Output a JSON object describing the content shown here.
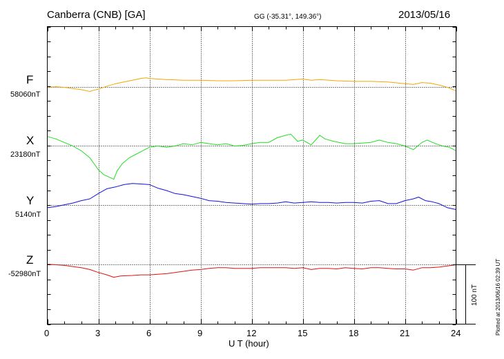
{
  "chart_data": {
    "type": "line",
    "title": "Canberra (CNB)  [GA]",
    "coordinates": "GG (-35.31°, 149.36°)",
    "date": "2013/05/16",
    "xlabel": "U T (hour)",
    "xlim": [
      0,
      24
    ],
    "x_ticks": [
      "0",
      "3",
      "6",
      "9",
      "12",
      "15",
      "18",
      "21",
      "24"
    ],
    "scale_bar": "100 nT",
    "plotted_note": "Plotted at 2013/06/16 02:39 UT",
    "y_units": "nT",
    "series": [
      {
        "name": "F",
        "baseline_label": "58060nT",
        "baseline": 58060,
        "color": "#f0a800",
        "x": [
          0,
          0.5,
          1,
          1.5,
          2,
          2.5,
          2.7,
          3,
          3.5,
          4,
          4.5,
          5,
          5.5,
          5.8,
          6,
          6.5,
          7,
          8,
          9,
          10,
          11,
          12,
          13,
          14,
          15,
          15.5,
          16,
          17,
          18,
          19,
          20,
          21,
          21.5,
          22,
          22.5,
          23,
          23.5,
          24
        ],
        "values": [
          58060,
          58061,
          58060,
          58058,
          58056,
          58053,
          58055,
          58057,
          58062,
          58066,
          58069,
          58072,
          58075,
          58076,
          58075,
          58074,
          58073,
          58072,
          58072,
          58071,
          58071,
          58072,
          58072,
          58072,
          58074,
          58072,
          58073,
          58071,
          58070,
          58070,
          58069,
          58066,
          58065,
          58068,
          58067,
          58064,
          58060,
          58054
        ]
      },
      {
        "name": "X",
        "baseline_label": "23180nT",
        "baseline": 23180,
        "color": "#22dd22",
        "x": [
          0,
          0.5,
          1,
          1.5,
          2,
          2.5,
          2.8,
          3,
          3.3,
          3.6,
          3.9,
          4.1,
          4.4,
          4.8,
          5.2,
          5.6,
          6,
          6.5,
          7,
          7.5,
          8,
          8.5,
          9,
          9.5,
          10,
          10.5,
          11,
          11.5,
          12,
          12.5,
          13,
          13.5,
          14,
          14.3,
          14.7,
          15,
          15.5,
          16,
          16.3,
          16.8,
          17.5,
          18,
          18.5,
          19,
          19.5,
          20,
          20.5,
          21,
          21.5,
          22,
          22.3,
          22.8,
          23.2,
          23.6,
          24
        ],
        "values": [
          23196,
          23192,
          23186,
          23180,
          23172,
          23160,
          23148,
          23140,
          23132,
          23128,
          23124,
          23138,
          23150,
          23160,
          23166,
          23172,
          23178,
          23180,
          23178,
          23180,
          23184,
          23182,
          23186,
          23184,
          23182,
          23184,
          23180,
          23181,
          23184,
          23186,
          23186,
          23194,
          23198,
          23200,
          23188,
          23190,
          23182,
          23198,
          23192,
          23188,
          23184,
          23184,
          23185,
          23186,
          23190,
          23186,
          23184,
          23180,
          23174,
          23186,
          23190,
          23184,
          23180,
          23178,
          23172
        ]
      },
      {
        "name": "Y",
        "baseline_label": "5140nT",
        "baseline": 5140,
        "color": "#1010dd",
        "x": [
          0,
          0.5,
          1,
          1.5,
          2,
          2.5,
          3,
          3.5,
          4,
          4.5,
          5,
          5.5,
          6,
          6.5,
          7,
          7.5,
          8,
          8.5,
          9,
          9.5,
          10,
          10.5,
          11,
          11.5,
          12,
          12.5,
          13,
          13.5,
          14,
          14.5,
          15,
          15.5,
          16,
          16.5,
          17,
          17.5,
          18,
          18.5,
          19,
          19.5,
          20,
          20.5,
          21,
          21.5,
          21.8,
          22.2,
          22.6,
          23,
          23.5,
          24
        ],
        "values": [
          5136,
          5138,
          5141,
          5144,
          5148,
          5151,
          5160,
          5168,
          5171,
          5175,
          5177,
          5176,
          5175,
          5169,
          5165,
          5160,
          5158,
          5155,
          5152,
          5148,
          5147,
          5145,
          5144,
          5143,
          5142,
          5143,
          5143,
          5144,
          5146,
          5144,
          5145,
          5146,
          5145,
          5145,
          5144,
          5145,
          5145,
          5144,
          5147,
          5148,
          5143,
          5143,
          5148,
          5151,
          5154,
          5148,
          5146,
          5143,
          5136,
          5133
        ]
      },
      {
        "name": "Z",
        "baseline_label": "-52980nT",
        "baseline": -52980,
        "color": "#dd1010",
        "x": [
          0,
          0.5,
          1,
          1.5,
          2,
          2.5,
          3,
          3.5,
          3.9,
          4.3,
          5,
          5.5,
          6,
          6.5,
          7,
          7.5,
          8,
          8.5,
          9,
          9.5,
          10,
          10.5,
          11,
          11.5,
          12,
          12.5,
          13,
          13.5,
          14,
          14.5,
          15,
          15.5,
          16,
          16.5,
          17,
          17.5,
          18,
          18.5,
          19,
          19.5,
          20,
          20.5,
          21,
          21.5,
          22,
          22.5,
          23,
          23.5,
          24
        ],
        "values": [
          -52979,
          -52980,
          -52981,
          -52983,
          -52985,
          -52988,
          -52993,
          -52997,
          -53001,
          -52999,
          -52998,
          -52997,
          -52997,
          -52996,
          -52995,
          -52993,
          -52991,
          -52989,
          -52988,
          -52986,
          -52985,
          -52985,
          -52986,
          -52986,
          -52986,
          -52985,
          -52985,
          -52985,
          -52985,
          -52986,
          -52985,
          -52988,
          -52986,
          -52986,
          -52987,
          -52985,
          -52986,
          -52987,
          -52985,
          -52985,
          -52986,
          -52987,
          -52987,
          -52989,
          -52985,
          -52985,
          -52984,
          -52982,
          -52980
        ]
      }
    ]
  }
}
